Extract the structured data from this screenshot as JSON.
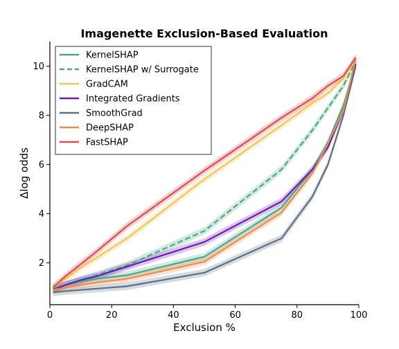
{
  "chart_data": {
    "type": "line",
    "title": "Imagenette Exclusion-Based Evaluation",
    "xlabel": "Exclusion %",
    "ylabel": "Δlog odds",
    "xlim": [
      0,
      100
    ],
    "ylim": [
      0.3,
      11.0
    ],
    "xticks": [
      0,
      20,
      40,
      60,
      80,
      100
    ],
    "yticks": [
      2,
      4,
      6,
      8,
      10
    ],
    "grid": false,
    "legend_position": "top-left",
    "x": [
      1,
      5,
      10,
      15,
      25,
      50,
      75,
      85,
      90,
      95,
      99
    ],
    "series": [
      {
        "name": "KernelSHAP",
        "color": "#4aa785",
        "dash": "solid",
        "values": [
          0.95,
          1.1,
          1.25,
          1.35,
          1.5,
          2.25,
          4.25,
          5.8,
          6.9,
          8.4,
          10.1
        ],
        "band": 0.15
      },
      {
        "name": "KernelSHAP w/ Surrogate",
        "color": "#4aa785",
        "dash": "dashed",
        "values": [
          0.95,
          1.1,
          1.3,
          1.5,
          1.9,
          3.3,
          5.8,
          7.4,
          8.3,
          9.2,
          10.2
        ],
        "band": 0.15
      },
      {
        "name": "GradCAM",
        "color": "#f4c556",
        "dash": "solid",
        "values": [
          1.0,
          1.35,
          1.8,
          2.2,
          3.0,
          5.4,
          7.6,
          8.5,
          8.9,
          9.5,
          10.3
        ],
        "band": 0.15
      },
      {
        "name": "Integrated Gradients",
        "color": "#6a1cb3",
        "dash": "solid",
        "values": [
          0.9,
          1.1,
          1.3,
          1.45,
          1.85,
          2.85,
          4.5,
          5.8,
          6.7,
          8.2,
          10.1
        ],
        "band": 0.15
      },
      {
        "name": "SmoothGrad",
        "color": "#5a6f87",
        "dash": "solid",
        "values": [
          0.8,
          0.85,
          0.9,
          0.95,
          1.05,
          1.6,
          3.0,
          4.7,
          6.0,
          8.0,
          10.0
        ],
        "band": 0.15
      },
      {
        "name": "DeepSHAP",
        "color": "#ef8a4a",
        "dash": "solid",
        "values": [
          0.9,
          1.0,
          1.1,
          1.2,
          1.35,
          2.05,
          4.05,
          5.65,
          6.85,
          8.2,
          10.3
        ],
        "band": 0.15
      },
      {
        "name": "FastSHAP",
        "color": "#e04c4f",
        "dash": "solid",
        "values": [
          1.0,
          1.45,
          1.95,
          2.45,
          3.5,
          5.75,
          7.9,
          8.7,
          9.2,
          9.6,
          10.35
        ],
        "band": 0.15
      }
    ]
  }
}
